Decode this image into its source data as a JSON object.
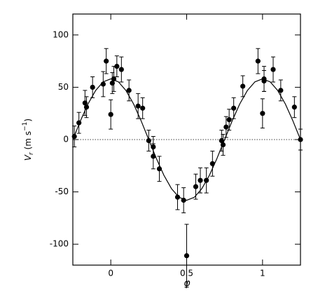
{
  "chart_data": {
    "type": "errorbar-scatter",
    "xlabel": "φ",
    "ylabel": [
      "V",
      "r",
      " (m s",
      "−1",
      ")"
    ],
    "xlim": [
      -0.25,
      1.25
    ],
    "ylim": [
      -120,
      120
    ],
    "xticks": [
      0,
      0.5,
      1
    ],
    "yticks": [
      -100,
      -50,
      0,
      50,
      100
    ],
    "reference_line": 0,
    "color": "#000000",
    "series": [
      {
        "kind": "points",
        "x": [
          -0.24,
          -0.21,
          -0.17,
          -0.16,
          -0.12,
          -0.05,
          -0.03,
          0,
          0.01,
          0.02,
          0.04,
          0.07,
          0.12,
          0.18,
          0.21,
          0.25,
          0.28,
          0.28,
          0.32,
          0.44,
          0.48,
          0.5,
          0.56,
          0.59,
          0.63,
          0.67,
          0.73,
          0.74,
          0.76,
          0.78,
          0.81,
          0.87,
          0.97,
          1.0,
          1.01,
          1.01,
          1.07,
          1.12,
          1.21,
          1.25
        ],
        "values": [
          3,
          16,
          35,
          31,
          50,
          53,
          75,
          24,
          54,
          58,
          70,
          67,
          47,
          32,
          30,
          -1,
          -7,
          -16,
          -28,
          -55,
          -58,
          -111,
          -45,
          -39,
          -39,
          -23,
          -1,
          -5,
          12,
          19,
          30,
          51,
          75,
          25,
          56,
          58,
          67,
          47,
          31,
          0
        ],
        "errors": [
          10,
          10,
          12,
          10,
          10,
          12,
          12,
          14,
          10,
          12,
          10,
          12,
          10,
          12,
          10,
          10,
          10,
          12,
          12,
          12,
          12,
          30,
          12,
          12,
          12,
          12,
          10,
          10,
          10,
          10,
          10,
          10,
          12,
          14,
          10,
          12,
          12,
          10,
          10,
          10
        ]
      },
      {
        "kind": "curve",
        "x": [
          -0.25,
          -0.2,
          -0.15,
          -0.1,
          -0.05,
          0,
          0.05,
          0.1,
          0.15,
          0.2,
          0.25,
          0.3,
          0.35,
          0.4,
          0.45,
          0.5,
          0.55,
          0.6,
          0.65,
          0.7,
          0.75,
          0.8,
          0.85,
          0.9,
          0.95,
          1,
          1.05,
          1.1,
          1.15,
          1.2,
          1.25
        ],
        "values": [
          0,
          17.9,
          34.1,
          46.9,
          55.2,
          58,
          55.2,
          46.9,
          34.1,
          17.9,
          0,
          -17.9,
          -34.1,
          -46.9,
          -55.2,
          -58,
          -55.2,
          -46.9,
          -34.1,
          -17.9,
          0,
          17.9,
          34.1,
          46.9,
          55.2,
          58,
          55.2,
          46.9,
          34.1,
          17.9,
          0
        ]
      }
    ]
  }
}
